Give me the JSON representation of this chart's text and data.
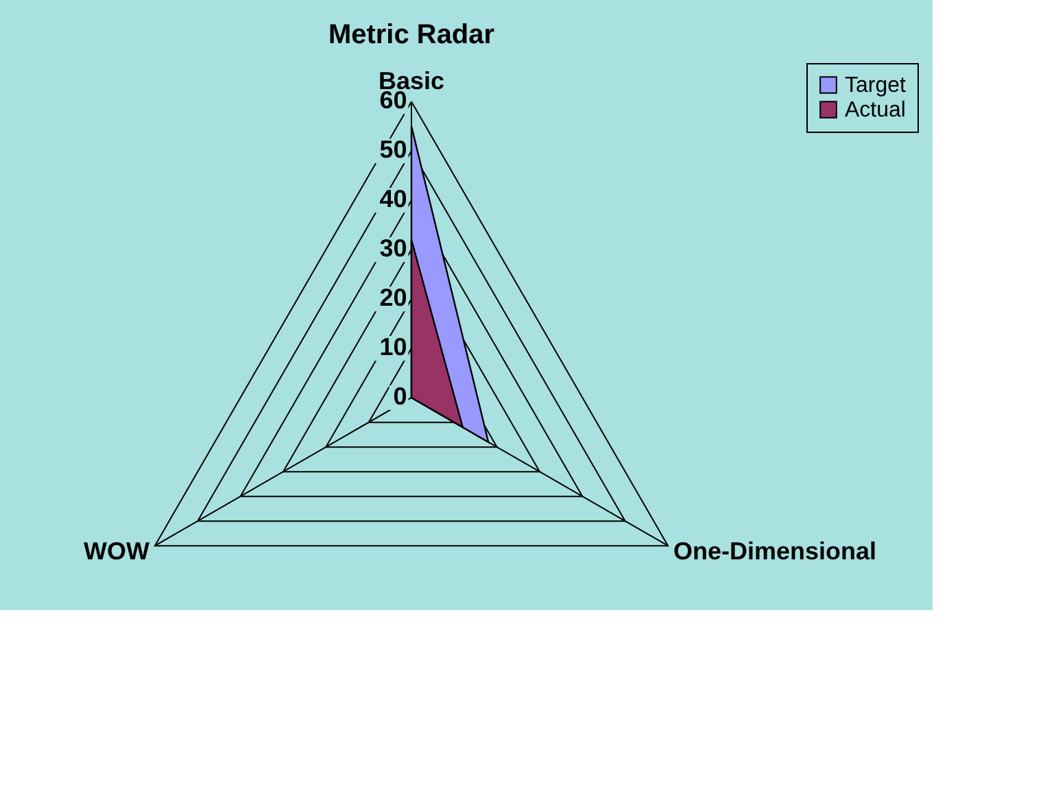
{
  "chart_data": {
    "type": "radar",
    "title": "Metric Radar",
    "categories": [
      "Basic",
      "One-Dimensional",
      "WOW"
    ],
    "series": [
      {
        "name": "Target",
        "color": "#9999ff",
        "values": [
          55,
          18,
          0
        ]
      },
      {
        "name": "Actual",
        "color": "#993366",
        "values": [
          32,
          12,
          0
        ]
      }
    ],
    "ylim": [
      0,
      60
    ],
    "yticks": [
      0,
      10,
      20,
      30,
      40,
      50,
      60
    ],
    "grid": true,
    "legend": "right"
  }
}
